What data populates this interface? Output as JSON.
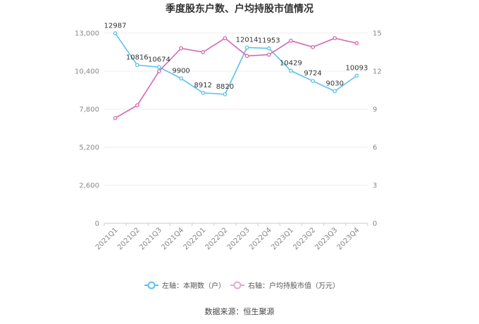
{
  "chart_data": {
    "type": "line",
    "title": "季度股东户数、户均持股市值情况",
    "categories": [
      "2021Q1",
      "2021Q2",
      "2021Q3",
      "2021Q4",
      "2022Q1",
      "2022Q2",
      "2022Q3",
      "2022Q4",
      "2023Q1",
      "2023Q2",
      "2023Q3",
      "2023Q4"
    ],
    "left_axis": {
      "ticks": [
        "0",
        "2,600",
        "5,200",
        "7,800",
        "10,400",
        "13,000"
      ],
      "ylim": [
        0,
        13000
      ]
    },
    "right_axis": {
      "ticks": [
        "0",
        "3",
        "6",
        "9",
        "12",
        "15"
      ],
      "ylim": [
        0,
        15
      ]
    },
    "series": [
      {
        "name": "左轴：本期数（户）",
        "axis": "left",
        "color": "#5bc2ed",
        "values": [
          12987,
          10816,
          10674,
          9900,
          8912,
          8820,
          12014,
          11953,
          10429,
          9724,
          9030,
          10093
        ],
        "labels": [
          "12987",
          "10816",
          "10674",
          "9900",
          "8912",
          "8820",
          "12014",
          "11953",
          "10429",
          "9724",
          "9030",
          "10093"
        ]
      },
      {
        "name": "右轴：户均持股市值（万元）",
        "axis": "right",
        "color": "#d966b4",
        "values": [
          8.3,
          9.3,
          12.0,
          13.8,
          13.5,
          14.6,
          13.2,
          13.3,
          14.4,
          13.9,
          14.6,
          14.2
        ]
      }
    ],
    "grid": true,
    "legend_position": "bottom"
  },
  "footer": {
    "source": "数据来源：恒生聚源"
  }
}
